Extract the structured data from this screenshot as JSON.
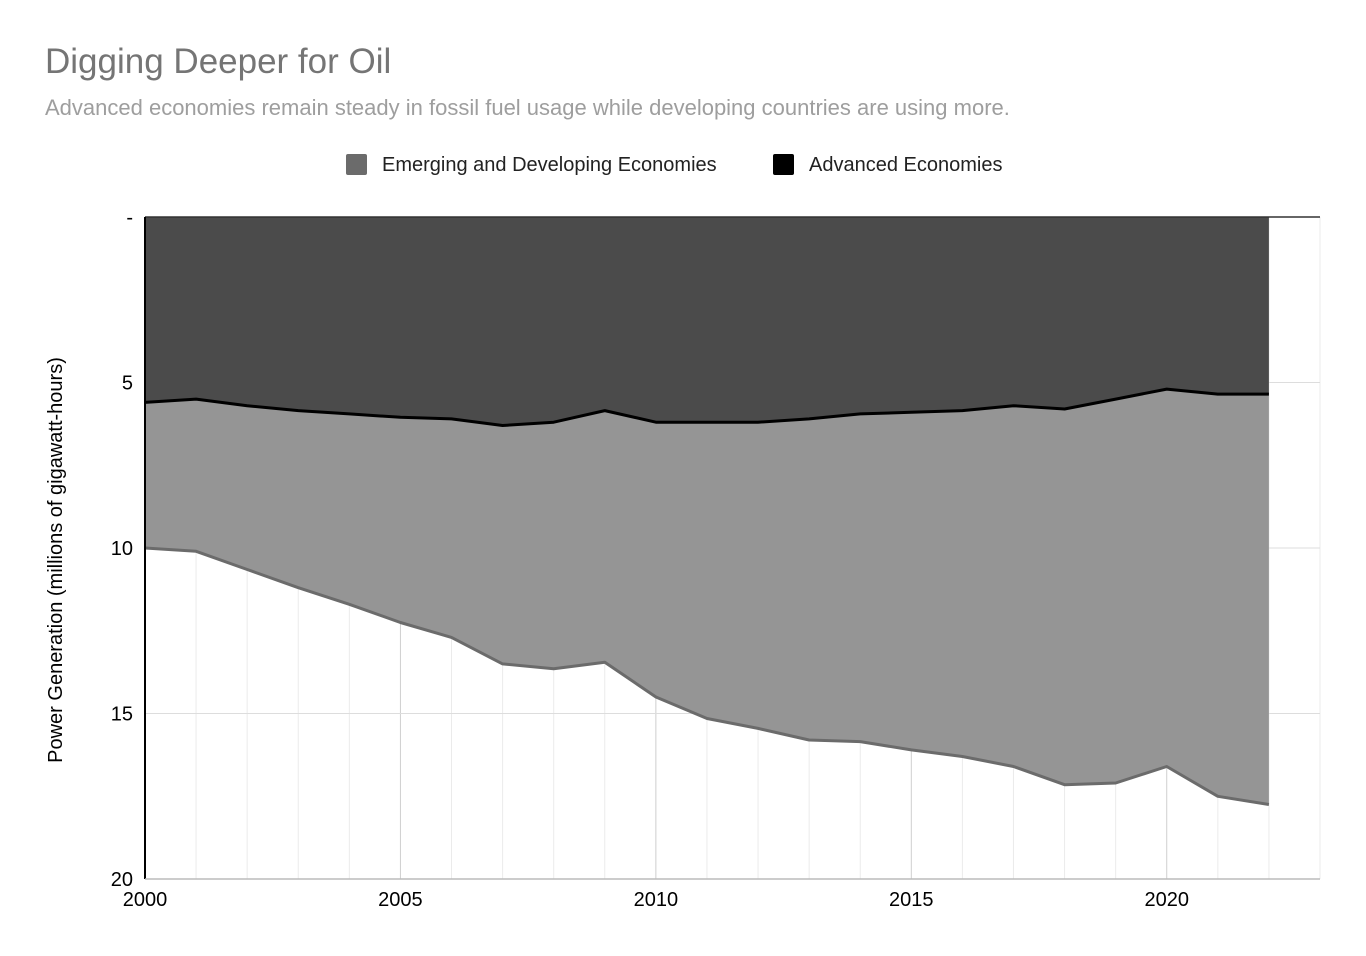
{
  "chart_data": {
    "type": "area",
    "title": "Digging Deeper for Oil",
    "subtitle": "Advanced economies remain steady in fossil fuel usage while developing countries are using more.",
    "xlabel": "",
    "ylabel": "Power Generation (millions of gigawatt-hours)",
    "stacked": true,
    "y_reversed": true,
    "ylim": [
      0,
      20
    ],
    "xlim": [
      2000,
      2023
    ],
    "x_ticks": [
      2000,
      2005,
      2010,
      2015,
      2020
    ],
    "y_ticks": [
      {
        "value": 0,
        "label": "-"
      },
      {
        "value": 5,
        "label": "5"
      },
      {
        "value": 10,
        "label": "10"
      },
      {
        "value": 15,
        "label": "15"
      },
      {
        "value": 20,
        "label": "20"
      }
    ],
    "grid": true,
    "legend_position": "top",
    "x": [
      2000,
      2001,
      2002,
      2003,
      2004,
      2005,
      2006,
      2007,
      2008,
      2009,
      2010,
      2011,
      2012,
      2013,
      2014,
      2015,
      2016,
      2017,
      2018,
      2019,
      2020,
      2021,
      2022
    ],
    "series": [
      {
        "name": "Advanced Economies",
        "color": "#4b4b4b",
        "line_color": "#000000",
        "values": [
          5.6,
          5.5,
          5.7,
          5.85,
          5.95,
          6.05,
          6.1,
          6.3,
          6.2,
          5.85,
          6.2,
          6.2,
          6.2,
          6.1,
          5.95,
          5.9,
          5.85,
          5.7,
          5.8,
          5.5,
          5.2,
          5.35,
          5.35
        ]
      },
      {
        "name": "Emerging and Developing Economies",
        "color": "#959595",
        "line_color": "#6b6b6b",
        "values": [
          4.4,
          4.6,
          4.95,
          5.35,
          5.75,
          6.2,
          6.6,
          7.2,
          7.45,
          7.6,
          8.3,
          8.95,
          9.25,
          9.7,
          9.9,
          10.2,
          10.45,
          10.9,
          11.35,
          11.6,
          11.4,
          12.15,
          12.4
        ]
      }
    ],
    "legend": [
      {
        "label": "Emerging and Developing Economies",
        "color": "#6b6b6b"
      },
      {
        "label": "Advanced Economies",
        "color": "#000000"
      }
    ]
  }
}
